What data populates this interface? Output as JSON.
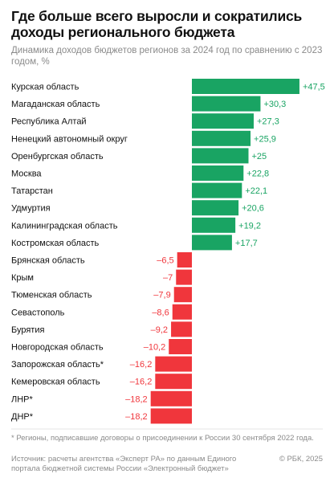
{
  "header": {
    "title": "Где больше всего выросли и сократились доходы регионального бюджета",
    "subtitle": "Динамика доходов бюджетов регионов за 2024 год по сравнению с 2023 годом, %"
  },
  "colors": {
    "positive": "#19a463",
    "negative": "#f0363c"
  },
  "chart_data": {
    "type": "bar",
    "orientation": "horizontal",
    "categories": [
      "Курская область",
      "Магаданская область",
      "Республика Алтай",
      "Ненецкий автономный округ",
      "Оренбургская область",
      "Москва",
      "Татарстан",
      "Удмуртия",
      "Калининградская область",
      "Костромская область",
      "Брянская область",
      "Крым",
      "Тюменская область",
      "Севастополь",
      "Бурятия",
      "Новгородская область",
      "Запорожская область*",
      "Кемеровская область",
      "ЛНР*",
      "ДНР*"
    ],
    "values": [
      47.5,
      30.3,
      27.3,
      25.9,
      25,
      22.8,
      22.1,
      20.6,
      19.2,
      17.7,
      -6.5,
      -7,
      -7.9,
      -8.6,
      -9.2,
      -10.2,
      -16.2,
      -16.2,
      -18.2,
      -18.2
    ],
    "value_labels": [
      "+47,5",
      "+30,3",
      "+27,3",
      "+25,9",
      "+25",
      "+22,8",
      "+22,1",
      "+20,6",
      "+19,2",
      "+17,7",
      "–6,5",
      "–7",
      "–7,9",
      "–8,6",
      "–9,2",
      "–10,2",
      "–16,2",
      "–16,2",
      "–18,2",
      "–18,2"
    ],
    "unit": "%",
    "legend": "none",
    "grid": false
  },
  "footer": {
    "footnote": "* Регионы, подписавшие договоры о присоединении к России 30 сентября 2022 года.",
    "source": "Источник: расчеты агентства «Эксперт РА» по данным Единого портала бюджетной системы России «Электронный бюджет»",
    "copyright": "© РБК, 2025"
  }
}
